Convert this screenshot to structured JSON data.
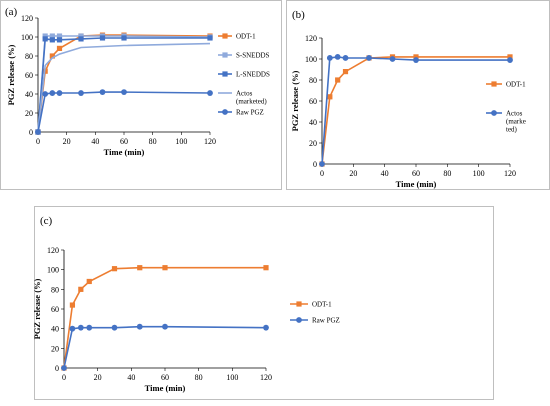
{
  "colors": {
    "orange": "#ED7D31",
    "blue": "#4472C4",
    "lightblue": "#8FAADC",
    "axis": "#000000"
  },
  "chart_data": [
    {
      "id": "a",
      "label": "(a)",
      "type": "line",
      "xlabel": "Time (min)",
      "ylabel": "PGZ release (%)",
      "xlim": [
        0,
        120
      ],
      "ylim": [
        0,
        120
      ],
      "xticks": [
        0,
        20,
        40,
        60,
        80,
        100,
        120
      ],
      "yticks": [
        0,
        20,
        40,
        60,
        80,
        100,
        120
      ],
      "legend_position": "right",
      "series": [
        {
          "name": "ODT-1",
          "color": "#ED7D31",
          "marker": "square",
          "x": [
            0,
            5,
            10,
            15,
            30,
            45,
            60,
            120
          ],
          "y": [
            0,
            64,
            80,
            88,
            101,
            102,
            102,
            101
          ]
        },
        {
          "name": "S-SNEDDS",
          "color": "#8FAADC",
          "marker": "square",
          "x": [
            0,
            5,
            10,
            15,
            30,
            45,
            60,
            120
          ],
          "y": [
            0,
            101,
            101,
            101,
            101,
            101,
            101,
            100
          ]
        },
        {
          "name": "L-SNEDDS",
          "color": "#4472C4",
          "marker": "square",
          "x": [
            0,
            5,
            10,
            15,
            30,
            45,
            60,
            120
          ],
          "y": [
            0,
            98,
            97,
            97,
            98,
            99,
            99,
            99
          ]
        },
        {
          "name": "Actos\n(marketed)",
          "color": "#8FAADC",
          "marker": "none",
          "x": [
            0,
            5,
            10,
            15,
            30,
            45,
            60,
            120
          ],
          "y": [
            0,
            70,
            78,
            82,
            89,
            90,
            91,
            93
          ]
        },
        {
          "name": "Raw PGZ",
          "color": "#4472C4",
          "marker": "circle",
          "x": [
            0,
            5,
            10,
            15,
            30,
            45,
            60,
            120
          ],
          "y": [
            0,
            40,
            41,
            41,
            41,
            42,
            42,
            41
          ]
        }
      ]
    },
    {
      "id": "b",
      "label": "(b)",
      "type": "line",
      "xlabel": "Time (min)",
      "ylabel": "PGZ release (%)",
      "xlim": [
        0,
        120
      ],
      "ylim": [
        0,
        120
      ],
      "xticks": [
        0,
        20,
        40,
        60,
        80,
        100,
        120
      ],
      "yticks": [
        0,
        20,
        40,
        60,
        80,
        100,
        120
      ],
      "legend_position": "right",
      "series": [
        {
          "name": "ODT-1",
          "color": "#ED7D31",
          "marker": "square",
          "x": [
            0,
            5,
            10,
            15,
            30,
            45,
            60,
            120
          ],
          "y": [
            0,
            64,
            80,
            88,
            101,
            102,
            102,
            102
          ]
        },
        {
          "name": "Actos\n(marke\nted)",
          "color": "#4472C4",
          "marker": "circle",
          "x": [
            0,
            5,
            10,
            15,
            30,
            45,
            60,
            120
          ],
          "y": [
            0,
            101,
            102,
            101,
            101,
            100,
            99,
            99
          ]
        }
      ]
    },
    {
      "id": "c",
      "label": "(c)",
      "type": "line",
      "xlabel": "Time (min)",
      "ylabel": "PGZ release (%)",
      "xlim": [
        0,
        120
      ],
      "ylim": [
        0,
        120
      ],
      "xticks": [
        0,
        20,
        40,
        60,
        80,
        100,
        120
      ],
      "yticks": [
        0,
        20,
        40,
        60,
        80,
        100,
        120
      ],
      "legend_position": "right",
      "series": [
        {
          "name": "ODT-1",
          "color": "#ED7D31",
          "marker": "square",
          "x": [
            0,
            5,
            10,
            15,
            30,
            45,
            60,
            120
          ],
          "y": [
            0,
            64,
            80,
            88,
            101,
            102,
            102,
            102
          ]
        },
        {
          "name": "Raw PGZ",
          "color": "#4472C4",
          "marker": "circle",
          "x": [
            0,
            5,
            10,
            15,
            30,
            45,
            60,
            120
          ],
          "y": [
            0,
            40,
            41,
            41,
            41,
            42,
            42,
            41
          ]
        }
      ]
    }
  ]
}
